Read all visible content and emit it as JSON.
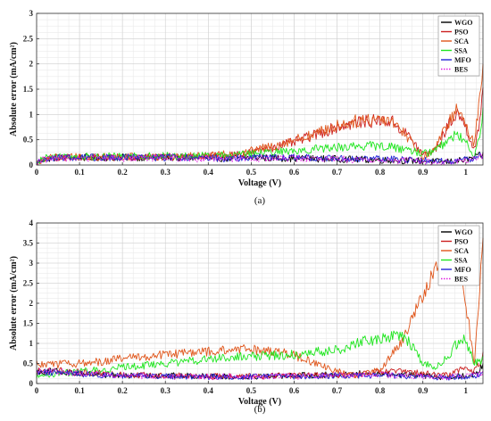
{
  "chart_data": [
    {
      "type": "line",
      "panel_label": "(a)",
      "xlabel": "Voltage (V)",
      "ylabel": "Absolute error  (mA/cm²)",
      "xlim": [
        0,
        1.04
      ],
      "ylim": [
        0,
        3
      ],
      "xticks": [
        "0",
        "0.1",
        "0.2",
        "0.3",
        "0.4",
        "0.5",
        "0.6",
        "0.7",
        "0.8",
        "0.9",
        "1"
      ],
      "yticks": [
        "0",
        "0.5",
        "1",
        "1.5",
        "2",
        "2.5",
        "3"
      ],
      "grid": true,
      "legend_position": "top-right",
      "series": [
        {
          "name": "WGO",
          "color": "#000000",
          "style": "solid",
          "x": [
            0,
            0.02,
            0.05,
            0.1,
            0.2,
            0.3,
            0.4,
            0.45,
            0.5,
            0.6,
            0.7,
            0.8,
            0.9,
            0.95,
            1.0,
            1.02,
            1.04
          ],
          "y": [
            0.05,
            0.12,
            0.15,
            0.15,
            0.15,
            0.15,
            0.14,
            0.13,
            0.15,
            0.13,
            0.12,
            0.1,
            0.08,
            0.06,
            0.1,
            0.15,
            0.2
          ]
        },
        {
          "name": "PSO",
          "color": "#cc1f1f",
          "style": "solid",
          "x": [
            0,
            0.02,
            0.05,
            0.1,
            0.2,
            0.3,
            0.4,
            0.45,
            0.5,
            0.55,
            0.6,
            0.65,
            0.7,
            0.75,
            0.8,
            0.83,
            0.87,
            0.9,
            0.93,
            0.96,
            0.98,
            1.0,
            1.02,
            1.035,
            1.04
          ],
          "y": [
            0.05,
            0.12,
            0.15,
            0.15,
            0.15,
            0.16,
            0.17,
            0.2,
            0.25,
            0.35,
            0.45,
            0.6,
            0.75,
            0.85,
            0.88,
            0.85,
            0.55,
            0.2,
            0.3,
            0.8,
            1.05,
            0.75,
            0.3,
            0.9,
            1.55
          ]
        },
        {
          "name": "SCA",
          "color": "#e0561b",
          "style": "solid",
          "x": [
            0,
            0.02,
            0.05,
            0.1,
            0.2,
            0.3,
            0.4,
            0.45,
            0.5,
            0.55,
            0.6,
            0.65,
            0.7,
            0.75,
            0.8,
            0.83,
            0.87,
            0.9,
            0.93,
            0.96,
            0.98,
            1.0,
            1.02,
            1.03,
            1.04
          ],
          "y": [
            0.05,
            0.13,
            0.16,
            0.16,
            0.16,
            0.17,
            0.18,
            0.22,
            0.28,
            0.38,
            0.5,
            0.62,
            0.78,
            0.88,
            0.93,
            0.88,
            0.5,
            0.15,
            0.35,
            0.85,
            1.1,
            0.8,
            0.4,
            1.2,
            2.05
          ]
        },
        {
          "name": "SSA",
          "color": "#1fe61f",
          "style": "solid",
          "x": [
            0,
            0.02,
            0.05,
            0.1,
            0.2,
            0.3,
            0.4,
            0.45,
            0.5,
            0.55,
            0.6,
            0.65,
            0.7,
            0.75,
            0.8,
            0.83,
            0.87,
            0.9,
            0.93,
            0.96,
            0.98,
            1.0,
            1.02,
            1.035,
            1.04
          ],
          "y": [
            0.05,
            0.15,
            0.18,
            0.17,
            0.17,
            0.18,
            0.18,
            0.2,
            0.22,
            0.25,
            0.28,
            0.32,
            0.35,
            0.38,
            0.38,
            0.35,
            0.3,
            0.22,
            0.3,
            0.5,
            0.6,
            0.45,
            0.2,
            0.7,
            1.05
          ]
        },
        {
          "name": "MFO",
          "color": "#2323d6",
          "style": "solid",
          "x": [
            0,
            0.02,
            0.05,
            0.1,
            0.2,
            0.3,
            0.4,
            0.45,
            0.5,
            0.6,
            0.7,
            0.8,
            0.9,
            0.95,
            1.0,
            1.02,
            1.04
          ],
          "y": [
            0.05,
            0.13,
            0.15,
            0.15,
            0.15,
            0.15,
            0.14,
            0.13,
            0.15,
            0.15,
            0.13,
            0.12,
            0.1,
            0.07,
            0.1,
            0.15,
            0.2
          ]
        },
        {
          "name": "BES",
          "color": "#e020e0",
          "style": "dotted",
          "x": [
            0,
            0.02,
            0.05,
            0.1,
            0.2,
            0.3,
            0.4,
            0.45,
            0.5,
            0.6,
            0.7,
            0.8,
            0.9,
            0.95,
            1.0,
            1.02,
            1.04
          ],
          "y": [
            0.05,
            0.12,
            0.14,
            0.14,
            0.14,
            0.14,
            0.13,
            0.13,
            0.14,
            0.13,
            0.12,
            0.1,
            0.08,
            0.06,
            0.09,
            0.12,
            0.18
          ]
        }
      ]
    },
    {
      "type": "line",
      "panel_label": "(b)",
      "xlabel": "Voltage (V)",
      "ylabel": "Absolute error  (mA/cm²)",
      "xlim": [
        0,
        1.04
      ],
      "ylim": [
        0,
        4
      ],
      "xticks": [
        "0",
        "0.1",
        "0.2",
        "0.3",
        "0.4",
        "0.5",
        "0.6",
        "0.7",
        "0.8",
        "0.9",
        "1"
      ],
      "yticks": [
        "0",
        "0.5",
        "1",
        "1.5",
        "2",
        "2.5",
        "3",
        "3.5",
        "4"
      ],
      "grid": true,
      "legend_position": "top-right",
      "series": [
        {
          "name": "WGO",
          "color": "#000000",
          "style": "solid",
          "x": [
            0,
            0.05,
            0.1,
            0.2,
            0.3,
            0.4,
            0.5,
            0.6,
            0.7,
            0.75,
            0.8,
            0.85,
            0.9,
            0.95,
            1.0,
            1.03,
            1.04
          ],
          "y": [
            0.3,
            0.3,
            0.25,
            0.2,
            0.2,
            0.18,
            0.18,
            0.2,
            0.22,
            0.25,
            0.25,
            0.22,
            0.2,
            0.15,
            0.2,
            0.25,
            0.5
          ]
        },
        {
          "name": "PSO",
          "color": "#cc1f1f",
          "style": "solid",
          "x": [
            0,
            0.05,
            0.1,
            0.2,
            0.3,
            0.4,
            0.5,
            0.6,
            0.7,
            0.75,
            0.8,
            0.85,
            0.9,
            0.95,
            1.0,
            1.02,
            1.04
          ],
          "y": [
            0.35,
            0.32,
            0.28,
            0.22,
            0.2,
            0.18,
            0.18,
            0.2,
            0.2,
            0.22,
            0.28,
            0.3,
            0.25,
            0.2,
            0.4,
            0.3,
            0.7
          ]
        },
        {
          "name": "SCA",
          "color": "#e0561b",
          "style": "solid",
          "x": [
            0,
            0.05,
            0.1,
            0.15,
            0.2,
            0.3,
            0.4,
            0.5,
            0.55,
            0.6,
            0.65,
            0.7,
            0.75,
            0.8,
            0.85,
            0.9,
            0.93,
            0.96,
            0.98,
            1.0,
            1.02,
            1.04
          ],
          "y": [
            0.5,
            0.48,
            0.5,
            0.55,
            0.62,
            0.72,
            0.8,
            0.85,
            0.82,
            0.7,
            0.5,
            0.3,
            0.2,
            0.35,
            1.0,
            2.2,
            2.9,
            3.45,
            3.2,
            2.0,
            0.5,
            3.6
          ]
        },
        {
          "name": "SSA",
          "color": "#1fe61f",
          "style": "solid",
          "x": [
            0,
            0.05,
            0.1,
            0.15,
            0.2,
            0.3,
            0.4,
            0.5,
            0.6,
            0.7,
            0.75,
            0.8,
            0.85,
            0.88,
            0.9,
            0.93,
            0.96,
            0.98,
            1.0,
            1.02,
            1.04
          ],
          "y": [
            0.2,
            0.25,
            0.3,
            0.35,
            0.4,
            0.5,
            0.6,
            0.68,
            0.72,
            0.85,
            1.0,
            1.15,
            1.2,
            0.9,
            0.5,
            0.4,
            0.7,
            1.0,
            1.1,
            0.5,
            0.6
          ]
        },
        {
          "name": "MFO",
          "color": "#2323d6",
          "style": "solid",
          "x": [
            0,
            0.05,
            0.1,
            0.2,
            0.3,
            0.4,
            0.5,
            0.6,
            0.7,
            0.8,
            0.9,
            0.95,
            1.0,
            1.03,
            1.04
          ],
          "y": [
            0.28,
            0.28,
            0.24,
            0.2,
            0.18,
            0.17,
            0.17,
            0.18,
            0.2,
            0.2,
            0.18,
            0.15,
            0.18,
            0.22,
            0.3
          ]
        },
        {
          "name": "BES",
          "color": "#e020e0",
          "style": "dotted",
          "x": [
            0,
            0.05,
            0.1,
            0.2,
            0.3,
            0.4,
            0.5,
            0.6,
            0.7,
            0.8,
            0.9,
            0.95,
            1.0,
            1.03,
            1.04
          ],
          "y": [
            0.3,
            0.3,
            0.25,
            0.2,
            0.18,
            0.17,
            0.17,
            0.18,
            0.2,
            0.22,
            0.18,
            0.15,
            0.2,
            0.22,
            0.28
          ]
        }
      ]
    }
  ]
}
